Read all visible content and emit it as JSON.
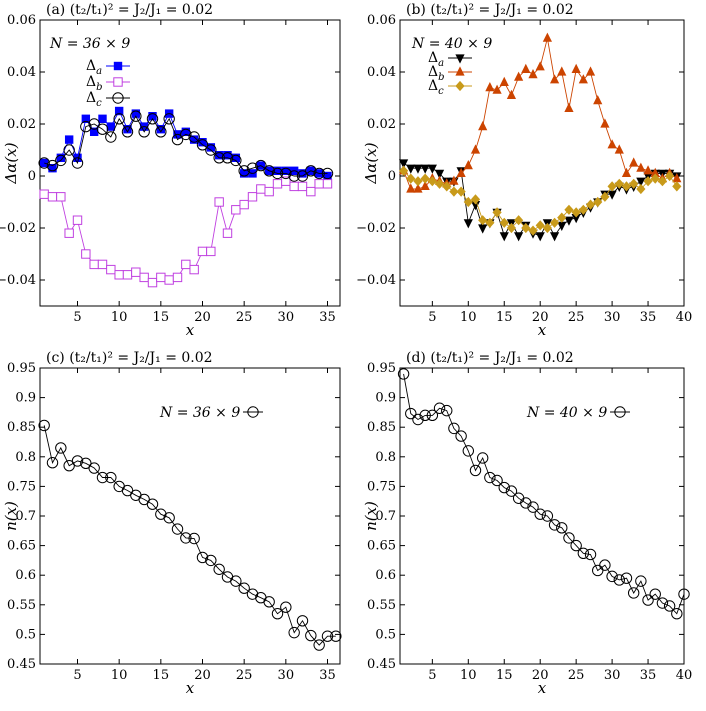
{
  "colors": {
    "a_a": "#0000ff",
    "b_a": "#c040e0",
    "c_a": "#000000",
    "a_b": "#000000",
    "b_b": "#cc4400",
    "c_b": "#c89a1a",
    "n": "#000000"
  },
  "chart_data": [
    {
      "id": "a",
      "type": "line",
      "title": "(a) (t₂/t₁)² = J₂/J₁ = 0.02",
      "xlabel": "x",
      "ylabel": "Δα(x)",
      "xlim": [
        0.5,
        36.5
      ],
      "ylim": [
        -0.05,
        0.06
      ],
      "xticks": [
        5,
        10,
        15,
        20,
        25,
        30,
        35
      ],
      "yticks": [
        0.06,
        0.04,
        0.02,
        0,
        -0.02,
        -0.04
      ],
      "ytick_labels": [
        "0.06",
        "0.04",
        "0.02",
        "0",
        "−0.02",
        "−0.04"
      ],
      "legend_title": "N = 36 × 9",
      "legend_position": "top-left",
      "grid": false,
      "series": [
        {
          "name": "Δa",
          "marker": "filled-square",
          "color": "#0000ff",
          "x": [
            1,
            2,
            3,
            4,
            5,
            6,
            7,
            8,
            9,
            10,
            11,
            12,
            13,
            14,
            15,
            16,
            17,
            18,
            19,
            20,
            21,
            22,
            23,
            24,
            25,
            26,
            27,
            28,
            29,
            30,
            31,
            32,
            33,
            34,
            35
          ],
          "y": [
            0.005,
            0.003,
            0.007,
            0.014,
            0.007,
            0.022,
            0.017,
            0.022,
            0.019,
            0.025,
            0.018,
            0.024,
            0.019,
            0.023,
            0.018,
            0.024,
            0.016,
            0.017,
            0.014,
            0.013,
            0.011,
            0.008,
            0.008,
            0.007,
            0.001,
            0.001,
            0.004,
            0.002,
            0.002,
            0.002,
            0.002,
            0.001,
            0.002,
            0.001,
            0.0
          ]
        },
        {
          "name": "Δb",
          "marker": "open-square",
          "color": "#c040e0",
          "x": [
            1,
            2,
            3,
            4,
            5,
            6,
            7,
            8,
            9,
            10,
            11,
            12,
            13,
            14,
            15,
            16,
            17,
            18,
            19,
            20,
            21,
            22,
            23,
            24,
            25,
            26,
            27,
            28,
            29,
            30,
            31,
            32,
            33,
            34,
            35
          ],
          "y": [
            -0.007,
            -0.008,
            -0.008,
            -0.022,
            -0.017,
            -0.03,
            -0.034,
            -0.034,
            -0.036,
            -0.038,
            -0.038,
            -0.037,
            -0.039,
            -0.041,
            -0.039,
            -0.04,
            -0.039,
            -0.034,
            -0.036,
            -0.029,
            -0.029,
            -0.01,
            -0.022,
            -0.013,
            -0.011,
            -0.008,
            -0.005,
            -0.006,
            -0.003,
            -0.002,
            -0.004,
            -0.004,
            -0.006,
            -0.003,
            -0.003
          ]
        },
        {
          "name": "Δc",
          "marker": "open-circle",
          "color": "#000000",
          "x": [
            1,
            2,
            3,
            4,
            5,
            6,
            7,
            8,
            9,
            10,
            11,
            12,
            13,
            14,
            15,
            16,
            17,
            18,
            19,
            20,
            21,
            22,
            23,
            24,
            25,
            26,
            27,
            28,
            29,
            30,
            31,
            32,
            33,
            34,
            35
          ],
          "y": [
            0.005,
            0.004,
            0.006,
            0.01,
            0.005,
            0.019,
            0.02,
            0.018,
            0.015,
            0.022,
            0.017,
            0.023,
            0.017,
            0.022,
            0.017,
            0.022,
            0.014,
            0.016,
            0.015,
            0.012,
            0.01,
            0.007,
            0.007,
            0.006,
            0.002,
            0.003,
            0.004,
            0.002,
            0.001,
            0.001,
            0.0,
            0.0,
            0.002,
            0.001,
            0.001
          ]
        }
      ]
    },
    {
      "id": "b",
      "type": "line",
      "title": "(b) (t₂/t₁)² = J₂/J₁ = 0.02",
      "xlabel": "x",
      "ylabel": "Δα(x)",
      "xlim": [
        0.5,
        40
      ],
      "ylim": [
        -0.05,
        0.06
      ],
      "xticks": [
        5,
        10,
        15,
        20,
        25,
        30,
        35,
        40
      ],
      "yticks": [
        0.06,
        0.04,
        0.02,
        0,
        -0.02,
        -0.04
      ],
      "ytick_labels": [
        "0.06",
        "0.04",
        "0.02",
        "0",
        "−0.02",
        "−0.04"
      ],
      "legend_title": "N = 40 × 9",
      "legend_position": "top-left",
      "grid": false,
      "series": [
        {
          "name": "Δa",
          "marker": "filled-triangle-down",
          "color": "#000000",
          "x": [
            1,
            2,
            3,
            4,
            5,
            6,
            7,
            8,
            9,
            10,
            11,
            12,
            13,
            14,
            15,
            16,
            17,
            18,
            19,
            20,
            21,
            22,
            23,
            24,
            25,
            26,
            27,
            28,
            29,
            30,
            31,
            32,
            33,
            34,
            35,
            36,
            37,
            38,
            39
          ],
          "y": [
            0.005,
            0.003,
            0.003,
            0.003,
            0.003,
            0.001,
            -0.002,
            -0.002,
            0.002,
            -0.018,
            -0.011,
            -0.02,
            -0.018,
            -0.014,
            -0.023,
            -0.018,
            -0.023,
            -0.019,
            -0.022,
            -0.023,
            -0.018,
            -0.023,
            -0.019,
            -0.017,
            -0.016,
            -0.014,
            -0.012,
            -0.01,
            -0.007,
            -0.007,
            -0.004,
            -0.005,
            -0.004,
            -0.002,
            0.0,
            0.001,
            0.001,
            0.001,
            0.0
          ]
        },
        {
          "name": "Δb",
          "marker": "filled-triangle-up",
          "color": "#cc4400",
          "x": [
            1,
            2,
            3,
            4,
            5,
            6,
            7,
            8,
            9,
            10,
            11,
            12,
            13,
            14,
            15,
            16,
            17,
            18,
            19,
            20,
            21,
            22,
            23,
            24,
            25,
            26,
            27,
            28,
            29,
            30,
            31,
            32,
            33,
            34,
            35,
            36,
            37,
            38,
            39
          ],
          "y": [
            0.002,
            -0.005,
            -0.005,
            -0.004,
            -0.001,
            -0.002,
            -0.003,
            -0.002,
            0.001,
            0.004,
            0.01,
            0.019,
            0.034,
            0.033,
            0.036,
            0.031,
            0.038,
            0.041,
            0.039,
            0.042,
            0.053,
            0.037,
            0.04,
            0.026,
            0.041,
            0.037,
            0.04,
            0.029,
            0.02,
            0.012,
            0.01,
            0.001,
            0.005,
            0.003,
            0.002,
            0.001,
            -0.001,
            0.001,
            -0.001
          ]
        },
        {
          "name": "Δc",
          "marker": "filled-diamond",
          "color": "#c89a1a",
          "x": [
            1,
            2,
            3,
            4,
            5,
            6,
            7,
            8,
            9,
            10,
            11,
            12,
            13,
            14,
            15,
            16,
            17,
            18,
            19,
            20,
            21,
            22,
            23,
            24,
            25,
            26,
            27,
            28,
            29,
            30,
            31,
            32,
            33,
            34,
            35,
            36,
            37,
            38,
            39
          ],
          "y": [
            0.002,
            -0.001,
            -0.002,
            -0.001,
            -0.002,
            -0.003,
            -0.004,
            -0.006,
            -0.006,
            -0.01,
            -0.009,
            -0.017,
            -0.018,
            -0.014,
            -0.018,
            -0.02,
            -0.017,
            -0.02,
            -0.021,
            -0.019,
            -0.02,
            -0.018,
            -0.016,
            -0.013,
            -0.014,
            -0.013,
            -0.011,
            -0.01,
            -0.008,
            -0.004,
            -0.003,
            -0.004,
            -0.003,
            -0.005,
            -0.002,
            -0.001,
            -0.002,
            0.0,
            -0.004
          ]
        }
      ]
    },
    {
      "id": "c",
      "type": "line",
      "title": "(c) (t₂/t₁)² = J₂/J₁ = 0.02",
      "xlabel": "x",
      "ylabel": "n(x)",
      "xlim": [
        0.5,
        36.5
      ],
      "ylim": [
        0.45,
        0.95
      ],
      "xticks": [
        5,
        10,
        15,
        20,
        25,
        30,
        35
      ],
      "yticks": [
        0.95,
        0.9,
        0.85,
        0.8,
        0.75,
        0.7,
        0.65,
        0.6,
        0.55,
        0.5,
        0.45
      ],
      "ytick_labels": [
        "0.95",
        "0.9",
        "0.85",
        "0.8",
        "0.75",
        "0.7",
        "0.65",
        "0.6",
        "0.55",
        "0.5",
        "0.45"
      ],
      "legend_title": "",
      "legend_position": "top-center",
      "grid": false,
      "series": [
        {
          "name": "N = 36 × 9",
          "marker": "open-circle",
          "color": "#000000",
          "x": [
            1,
            2,
            3,
            4,
            5,
            6,
            7,
            8,
            9,
            10,
            11,
            12,
            13,
            14,
            15,
            16,
            17,
            18,
            19,
            20,
            21,
            22,
            23,
            24,
            25,
            26,
            27,
            28,
            29,
            30,
            31,
            32,
            33,
            34,
            35,
            36
          ],
          "y": [
            0.853,
            0.79,
            0.815,
            0.785,
            0.793,
            0.789,
            0.781,
            0.765,
            0.765,
            0.75,
            0.743,
            0.735,
            0.728,
            0.72,
            0.703,
            0.697,
            0.678,
            0.663,
            0.662,
            0.63,
            0.625,
            0.61,
            0.597,
            0.59,
            0.578,
            0.568,
            0.562,
            0.555,
            0.535,
            0.546,
            0.503,
            0.523,
            0.498,
            0.482,
            0.497,
            0.497
          ]
        }
      ]
    },
    {
      "id": "d",
      "type": "line",
      "title": "(d) (t₂/t₁)² = J₂/J₁ = 0.02",
      "xlabel": "x",
      "ylabel": "n(x)",
      "xlim": [
        0.5,
        40
      ],
      "ylim": [
        0.45,
        0.95
      ],
      "xticks": [
        5,
        10,
        15,
        20,
        25,
        30,
        35,
        40
      ],
      "yticks": [
        0.95,
        0.9,
        0.85,
        0.8,
        0.75,
        0.7,
        0.65,
        0.6,
        0.55,
        0.5,
        0.45
      ],
      "ytick_labels": [
        "0.95",
        "0.9",
        "0.85",
        "0.8",
        "0.75",
        "0.7",
        "0.65",
        "0.6",
        "0.55",
        "0.5",
        "0.45"
      ],
      "legend_title": "",
      "legend_position": "top-center",
      "grid": false,
      "series": [
        {
          "name": "N = 40 × 9",
          "marker": "open-circle",
          "color": "#000000",
          "x": [
            1,
            2,
            3,
            4,
            5,
            6,
            7,
            8,
            9,
            10,
            11,
            12,
            13,
            14,
            15,
            16,
            17,
            18,
            19,
            20,
            21,
            22,
            23,
            24,
            25,
            26,
            27,
            28,
            29,
            30,
            31,
            32,
            33,
            34,
            35,
            36,
            37,
            38,
            39,
            40
          ],
          "y": [
            0.94,
            0.873,
            0.863,
            0.87,
            0.87,
            0.882,
            0.878,
            0.848,
            0.835,
            0.81,
            0.777,
            0.798,
            0.765,
            0.76,
            0.748,
            0.742,
            0.73,
            0.722,
            0.715,
            0.703,
            0.7,
            0.685,
            0.68,
            0.663,
            0.65,
            0.637,
            0.635,
            0.608,
            0.617,
            0.598,
            0.592,
            0.595,
            0.57,
            0.59,
            0.558,
            0.568,
            0.553,
            0.548,
            0.535,
            0.568
          ]
        }
      ]
    }
  ]
}
